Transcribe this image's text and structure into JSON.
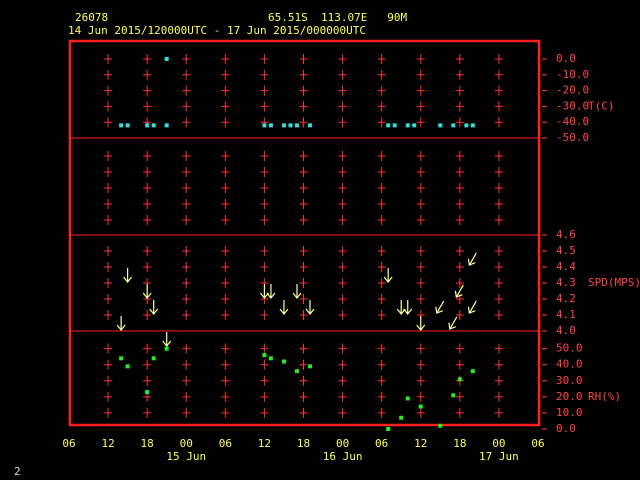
{
  "header": {
    "station": "26078",
    "location": "65.51S  113.07E   90M",
    "period": "14 Jun 2015/120000UTC - 17 Jun 2015/000000UTC",
    "page": "2"
  },
  "chart_data": [
    {
      "type": "scatter",
      "label": "T(C)",
      "color": "#33dddd",
      "x": [
        "2015-06-14T14:00",
        "2015-06-14T15:00",
        "2015-06-14T18:00",
        "2015-06-14T19:00",
        "2015-06-14T21:00",
        "2015-06-14T21:00",
        "2015-06-15T12:00",
        "2015-06-15T13:00",
        "2015-06-15T15:00",
        "2015-06-15T16:00",
        "2015-06-15T17:00",
        "2015-06-15T19:00",
        "2015-06-16T07:00",
        "2015-06-16T08:00",
        "2015-06-16T10:00",
        "2015-06-16T11:00",
        "2015-06-16T15:00",
        "2015-06-16T17:00",
        "2015-06-16T19:00",
        "2015-06-16T20:00"
      ],
      "values": [
        -42,
        -42,
        -42,
        -42,
        -42,
        0,
        -42,
        -42,
        -42,
        -42,
        -42,
        -42,
        -42,
        -42,
        -42,
        -42,
        -42,
        -42,
        -42,
        -42
      ],
      "ylim": [
        -50,
        12
      ],
      "yticks": [
        {
          "value": 0,
          "label": "0.0"
        },
        {
          "value": -10,
          "label": "-10.0"
        },
        {
          "value": -20,
          "label": "-20.0"
        },
        {
          "value": -30,
          "label": "-30.0"
        },
        {
          "value": -40,
          "label": "-40.0"
        },
        {
          "value": -50,
          "label": "-50.0"
        }
      ]
    },
    {
      "type": "wind",
      "label": "SPD(MPS)",
      "color": "#ffff99",
      "x": [
        "2015-06-14T14:00",
        "2015-06-14T15:00",
        "2015-06-14T18:00",
        "2015-06-14T19:00",
        "2015-06-14T21:00",
        "2015-06-15T12:00",
        "2015-06-15T13:00",
        "2015-06-15T15:00",
        "2015-06-15T17:00",
        "2015-06-15T19:00",
        "2015-06-16T07:00",
        "2015-06-16T09:00",
        "2015-06-16T10:00",
        "2015-06-16T12:00",
        "2015-06-16T15:00",
        "2015-06-16T17:00",
        "2015-06-16T18:00",
        "2015-06-16T20:00",
        "2015-06-16T20:00"
      ],
      "values": [
        4.05,
        4.35,
        4.25,
        4.15,
        3.95,
        4.25,
        4.25,
        4.15,
        4.25,
        4.15,
        4.35,
        4.15,
        4.15,
        4.05,
        4.15,
        4.05,
        4.25,
        4.45,
        4.15
      ],
      "directions": [
        0,
        0,
        0,
        0,
        0,
        0,
        0,
        0,
        0,
        0,
        0,
        0,
        0,
        0,
        30,
        30,
        30,
        30,
        30
      ],
      "ylim": [
        4.0,
        4.6
      ],
      "yticks": [
        {
          "value": 4.6,
          "label": "4.6"
        },
        {
          "value": 4.5,
          "label": "4.5"
        },
        {
          "value": 4.4,
          "label": "4.4"
        },
        {
          "value": 4.3,
          "label": "4.3"
        },
        {
          "value": 4.2,
          "label": "4.2"
        },
        {
          "value": 4.1,
          "label": "4.1"
        },
        {
          "value": 4.0,
          "label": "4.0"
        }
      ]
    },
    {
      "type": "scatter",
      "label": "RH(%)",
      "color": "#22ee22",
      "x": [
        "2015-06-14T14:00",
        "2015-06-14T15:00",
        "2015-06-14T18:00",
        "2015-06-14T19:00",
        "2015-06-14T21:00",
        "2015-06-15T12:00",
        "2015-06-15T13:00",
        "2015-06-15T15:00",
        "2015-06-15T17:00",
        "2015-06-15T19:00",
        "2015-06-16T07:00",
        "2015-06-16T09:00",
        "2015-06-16T10:00",
        "2015-06-16T12:00",
        "2015-06-16T15:00",
        "2015-06-16T17:00",
        "2015-06-16T18:00",
        "2015-06-16T20:00"
      ],
      "values": [
        44,
        39,
        23,
        44,
        50,
        46,
        44,
        42,
        36,
        39,
        0,
        7,
        19,
        14,
        2,
        21,
        31,
        36
      ],
      "ylim": [
        0,
        61
      ],
      "yticks": [
        {
          "value": 50,
          "label": "50.0"
        },
        {
          "value": 40,
          "label": "40.0"
        },
        {
          "value": 30,
          "label": "30.0"
        },
        {
          "value": 20,
          "label": "20.0"
        },
        {
          "value": 10,
          "label": "10.0"
        },
        {
          "value": 0,
          "label": "0.0"
        }
      ],
      "xlim": [
        "2015-06-14T06:00",
        "2015-06-17T06:00"
      ],
      "xticks": [
        {
          "value": "2015-06-14T06:00",
          "label": "06"
        },
        {
          "value": "2015-06-14T12:00",
          "label": "12"
        },
        {
          "value": "2015-06-14T18:00",
          "label": "18"
        },
        {
          "value": "2015-06-15T00:00",
          "label": "00"
        },
        {
          "value": "2015-06-15T06:00",
          "label": "06"
        },
        {
          "value": "2015-06-15T12:00",
          "label": "12"
        },
        {
          "value": "2015-06-15T18:00",
          "label": "18"
        },
        {
          "value": "2015-06-16T00:00",
          "label": "00"
        },
        {
          "value": "2015-06-16T06:00",
          "label": "06"
        },
        {
          "value": "2015-06-16T12:00",
          "label": "12"
        },
        {
          "value": "2015-06-16T18:00",
          "label": "18"
        },
        {
          "value": "2015-06-17T00:00",
          "label": "00"
        },
        {
          "value": "2015-06-17T06:00",
          "label": "06"
        }
      ],
      "date_ticks": [
        {
          "value": "2015-06-15T00:00",
          "label": "15 Jun"
        },
        {
          "value": "2015-06-16T00:00",
          "label": "16 Jun"
        },
        {
          "value": "2015-06-17T00:00",
          "label": "17 Jun"
        }
      ]
    }
  ]
}
